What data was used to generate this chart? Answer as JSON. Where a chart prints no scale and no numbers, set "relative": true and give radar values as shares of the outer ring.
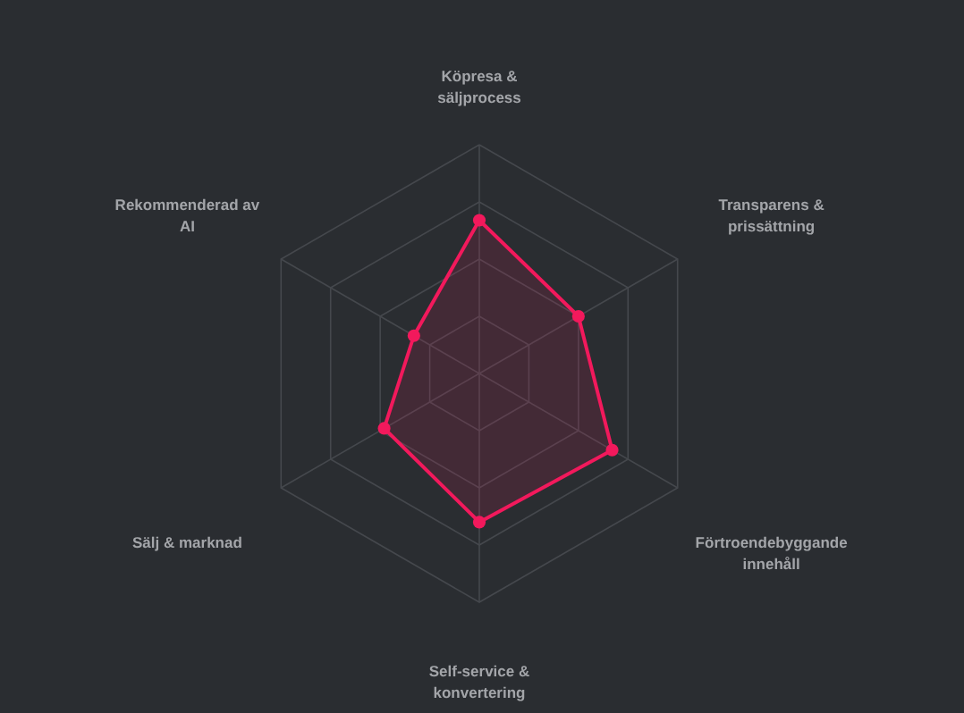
{
  "chart_data": {
    "type": "radar",
    "relative": true,
    "grid": true,
    "marker": "circle",
    "line_style": "solid",
    "categories": [
      "Köpresa & säljprocess",
      "Transparens & prissättning",
      "Förtroendebyggande innehåll",
      "Self-service & konvertering",
      "Sälj & marknad",
      "Rekommenderad av AI"
    ],
    "series": [
      {
        "color": "#f2195c",
        "values": [
          0.67,
          0.5,
          0.67,
          0.65,
          0.48,
          0.33
        ]
      }
    ]
  }
}
